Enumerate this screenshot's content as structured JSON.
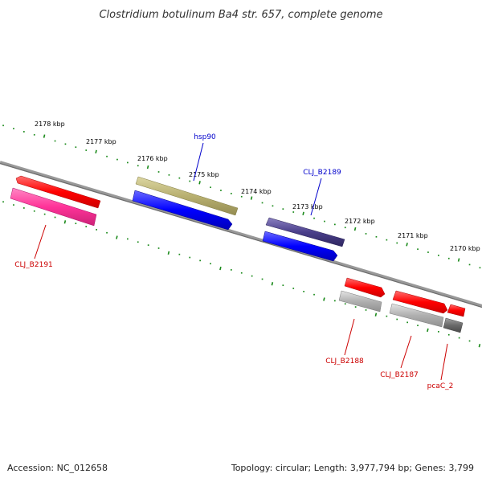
{
  "title": "Clostridium botulinum Ba4 str. 657, complete genome",
  "footer": {
    "accession": "Accession: NC_012658",
    "summary": "Topology: circular; Length: 3,977,794 bp; Genes: 3,799"
  },
  "colors": {
    "background": "#ffffff",
    "backbone": "#888888",
    "ticks": "#1a8a1a",
    "forward_label": "#0000cc",
    "reverse_label": "#cc0000",
    "red_gene": "#ff0000",
    "pink_gene": "#ff3399",
    "olive_gene": "#b8b070",
    "blue_gene": "#0000ff",
    "navy_gene": "#4a3f8a",
    "gray_gene": "#b0b0b0",
    "dark_gray_gene": "#6a6a6a"
  },
  "ticks": {
    "labels": [
      "2178 kbp",
      "2177 kbp",
      "2176 kbp",
      "2175 kbp",
      "2174 kbp",
      "2173 kbp",
      "2172 kbp",
      "2171 kbp",
      "2170 kbp"
    ]
  },
  "gene_labels": {
    "hsp90": "hsp90",
    "clj_b2189": "CLJ_B2189",
    "clj_b2191": "CLJ_B2191",
    "clj_b2188": "CLJ_B2188",
    "clj_b2187": "CLJ_B2187",
    "pcac_2": "pcaC_2"
  }
}
